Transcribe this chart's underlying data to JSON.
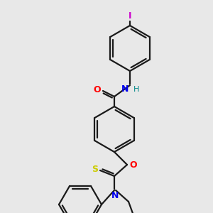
{
  "bg_color": "#e8e8e8",
  "bond_color": "#1a1a1a",
  "atom_colors": {
    "O": "#ff0000",
    "N": "#0000ee",
    "H": "#008888",
    "S": "#cccc00",
    "I": "#cc00cc"
  }
}
